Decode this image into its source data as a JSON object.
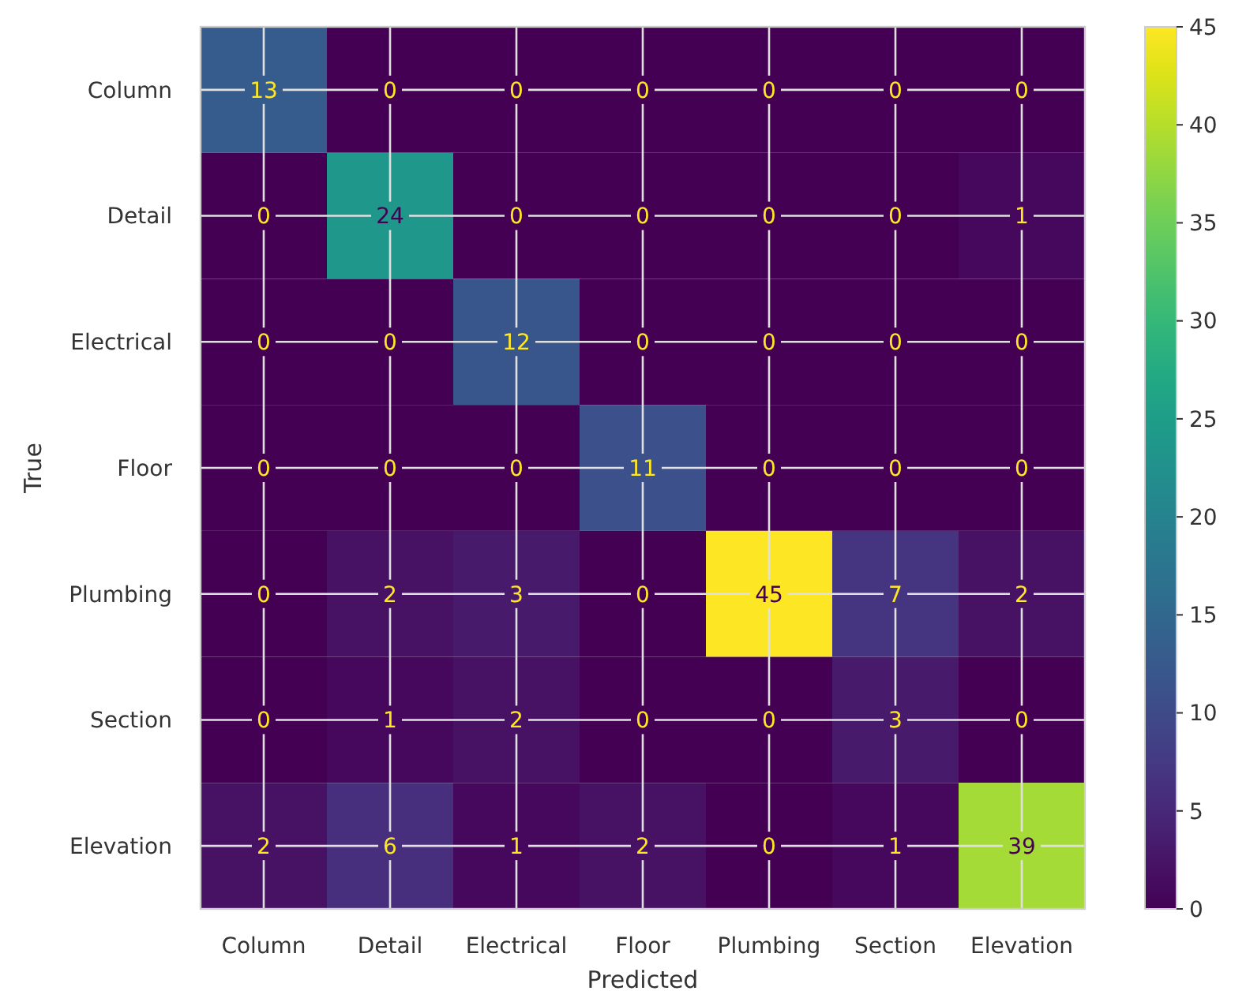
{
  "chart_data": {
    "type": "heatmap",
    "xlabel": "Predicted",
    "ylabel": "True",
    "categories": [
      "Column",
      "Detail",
      "Electrical",
      "Floor",
      "Plumbing",
      "Section",
      "Elevation"
    ],
    "y_categories": [
      "Column",
      "Detail",
      "Electrical",
      "Floor",
      "Plumbing",
      "Section",
      "Elevation"
    ],
    "cells": [
      [
        13,
        0,
        0,
        0,
        0,
        0,
        0
      ],
      [
        0,
        24,
        0,
        0,
        0,
        0,
        1
      ],
      [
        0,
        0,
        12,
        0,
        0,
        0,
        0
      ],
      [
        0,
        0,
        0,
        11,
        0,
        0,
        0
      ],
      [
        0,
        2,
        3,
        0,
        45,
        7,
        2
      ],
      [
        0,
        1,
        2,
        0,
        0,
        3,
        0
      ],
      [
        2,
        6,
        1,
        2,
        0,
        1,
        39
      ]
    ],
    "clim": [
      0,
      45
    ],
    "cticks": [
      0,
      5,
      10,
      15,
      20,
      25,
      30,
      35,
      40,
      45
    ],
    "data_labels": true,
    "grid": true
  }
}
